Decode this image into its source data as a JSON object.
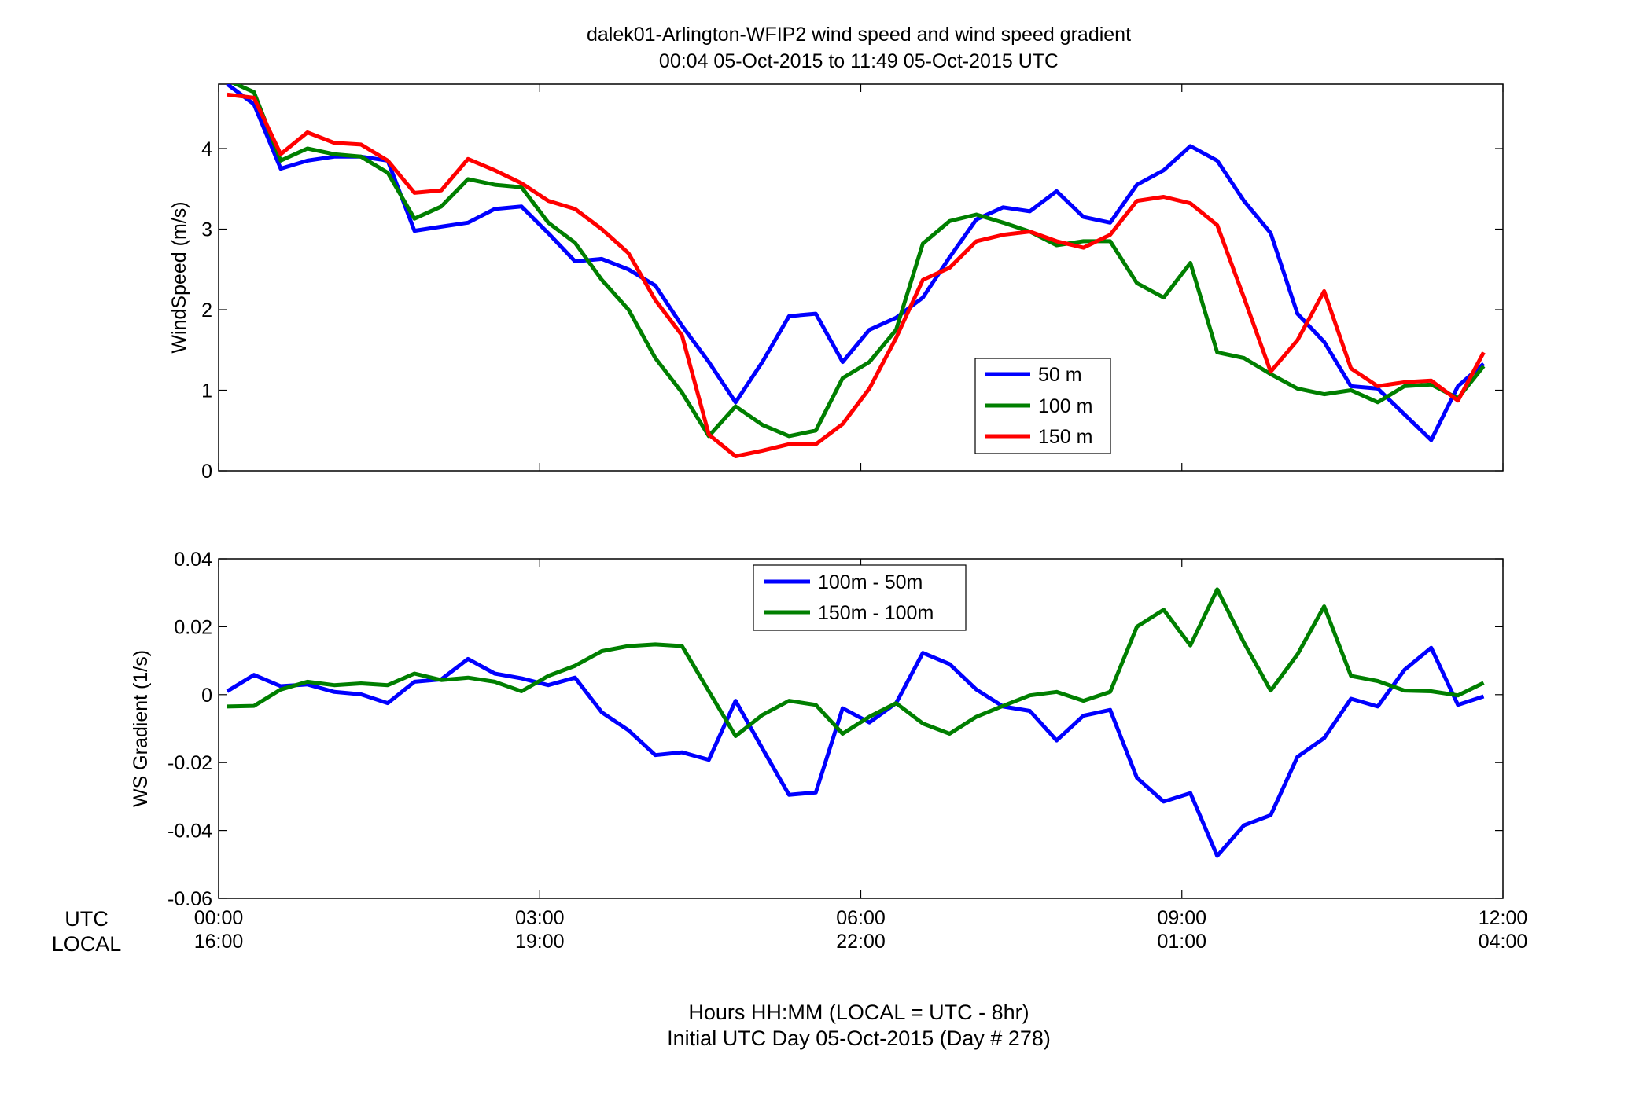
{
  "figure": {
    "title_line1": "dalek01-Arlington-WFIP2  wind speed and wind speed gradient",
    "title_line2": "00:04 05-Oct-2015 to 11:49 05-Oct-2015  UTC",
    "xlabel_line1": "Hours HH:MM  (LOCAL = UTC - 8hr)",
    "xlabel_line2": "Initial UTC Day 05-Oct-2015 (Day # 278)",
    "row_label_utc": "UTC",
    "row_label_local": "LOCAL",
    "ticks_utc": [
      "00:00",
      "03:00",
      "06:00",
      "09:00",
      "12:00"
    ],
    "ticks_local": [
      "16:00",
      "19:00",
      "22:00",
      "01:00",
      "04:00"
    ]
  },
  "chart_data": [
    {
      "type": "line",
      "ylabel": "WindSpeed (m/s)",
      "xlim": [
        0,
        12
      ],
      "ylim": [
        0,
        4.8
      ],
      "yticks": [
        0,
        1,
        2,
        3,
        4
      ],
      "ytick_labels": [
        "0",
        "1",
        "2",
        "3",
        "4"
      ],
      "xticks": [
        0,
        3,
        6,
        9,
        12
      ],
      "legend_position": "lower-right",
      "x": [
        0.08,
        0.33,
        0.58,
        0.83,
        1.08,
        1.33,
        1.58,
        1.83,
        2.08,
        2.33,
        2.58,
        2.83,
        3.08,
        3.33,
        3.58,
        3.83,
        4.08,
        4.33,
        4.58,
        4.83,
        5.08,
        5.33,
        5.58,
        5.83,
        6.08,
        6.33,
        6.58,
        6.83,
        7.08,
        7.33,
        7.58,
        7.83,
        8.08,
        8.33,
        8.58,
        8.83,
        9.08,
        9.33,
        9.58,
        9.83,
        10.08,
        10.33,
        10.58,
        10.83,
        11.08,
        11.33,
        11.58,
        11.82
      ],
      "series": [
        {
          "name": "50 m",
          "color": "#0000ff",
          "values": [
            4.8,
            4.55,
            3.75,
            3.85,
            3.9,
            3.9,
            3.85,
            2.98,
            3.03,
            3.08,
            3.25,
            3.28,
            2.95,
            2.6,
            2.63,
            2.5,
            2.3,
            1.8,
            1.35,
            0.85,
            1.35,
            1.92,
            1.95,
            1.35,
            1.75,
            1.9,
            2.15,
            2.65,
            3.12,
            3.27,
            3.22,
            3.47,
            3.15,
            3.08,
            3.55,
            3.73,
            4.03,
            3.85,
            3.35,
            2.95,
            1.95,
            1.6,
            1.05,
            1.02,
            0.7,
            0.38,
            1.05,
            1.33
          ]
        },
        {
          "name": "100 m",
          "color": "#007f00",
          "values": [
            4.85,
            4.7,
            3.85,
            4.0,
            3.93,
            3.9,
            3.7,
            3.13,
            3.28,
            3.62,
            3.55,
            3.52,
            3.08,
            2.83,
            2.37,
            2.0,
            1.4,
            0.97,
            0.43,
            0.8,
            0.57,
            0.43,
            0.5,
            1.15,
            1.35,
            1.75,
            2.82,
            3.1,
            3.18,
            3.08,
            2.97,
            2.8,
            2.85,
            2.85,
            2.33,
            2.15,
            2.58,
            1.47,
            1.4,
            1.2,
            1.02,
            0.95,
            1.0,
            0.85,
            1.05,
            1.07,
            0.9,
            1.3
          ]
        },
        {
          "name": "150 m",
          "color": "#ff0000",
          "values": [
            4.67,
            4.63,
            3.93,
            4.2,
            4.07,
            4.05,
            3.85,
            3.45,
            3.48,
            3.87,
            3.73,
            3.57,
            3.35,
            3.25,
            3.0,
            2.7,
            2.12,
            1.68,
            0.45,
            0.18,
            0.25,
            0.33,
            0.33,
            0.58,
            1.02,
            1.65,
            2.37,
            2.52,
            2.85,
            2.93,
            2.97,
            2.85,
            2.77,
            2.93,
            3.35,
            3.4,
            3.32,
            3.05,
            2.15,
            1.23,
            1.62,
            2.23,
            1.27,
            1.05,
            1.1,
            1.12,
            0.87,
            1.47
          ]
        }
      ]
    },
    {
      "type": "line",
      "ylabel": "WS Gradient (1/s)",
      "xlim": [
        0,
        12
      ],
      "ylim": [
        -0.06,
        0.04
      ],
      "yticks": [
        -0.06,
        -0.04,
        -0.02,
        0,
        0.02,
        0.04
      ],
      "ytick_labels": [
        "-0.06",
        "-0.04",
        "-0.02",
        "0",
        "0.02",
        "0.04"
      ],
      "xticks": [
        0,
        3,
        6,
        9,
        12
      ],
      "legend_position": "top-center",
      "x": [
        0.08,
        0.33,
        0.58,
        0.83,
        1.08,
        1.33,
        1.58,
        1.83,
        2.08,
        2.33,
        2.58,
        2.83,
        3.08,
        3.33,
        3.58,
        3.83,
        4.08,
        4.33,
        4.58,
        4.83,
        5.08,
        5.33,
        5.58,
        5.83,
        6.08,
        6.33,
        6.58,
        6.83,
        7.08,
        7.33,
        7.58,
        7.83,
        8.08,
        8.33,
        8.58,
        8.83,
        9.08,
        9.33,
        9.58,
        9.83,
        10.08,
        10.33,
        10.58,
        10.83,
        11.08,
        11.33,
        11.58,
        11.82
      ],
      "series": [
        {
          "name": "100m - 50m",
          "color": "#0000ff",
          "values": [
            0.001,
            0.0058,
            0.0025,
            0.003,
            0.0008,
            0.0001,
            -0.0025,
            0.0038,
            0.0045,
            0.0105,
            0.0062,
            0.0048,
            0.0028,
            0.005,
            -0.0052,
            -0.0105,
            -0.0178,
            -0.017,
            -0.0192,
            -0.0018,
            -0.0158,
            -0.0295,
            -0.0288,
            -0.004,
            -0.0082,
            -0.0025,
            0.0123,
            0.009,
            0.0015,
            -0.0035,
            -0.0048,
            -0.0135,
            -0.0062,
            -0.0045,
            -0.0245,
            -0.0315,
            -0.029,
            -0.0475,
            -0.0385,
            -0.0355,
            -0.0183,
            -0.0128,
            -0.0012,
            -0.0035,
            0.0073,
            0.0138,
            -0.003,
            -0.0005
          ]
        },
        {
          "name": "150m - 100m",
          "color": "#007f00",
          "values": [
            -0.0035,
            -0.0033,
            0.0015,
            0.0038,
            0.0028,
            0.0033,
            0.0028,
            0.0062,
            0.0043,
            0.005,
            0.0038,
            0.001,
            0.0055,
            0.0085,
            0.0128,
            0.0143,
            0.0148,
            0.0143,
            0.001,
            -0.0122,
            -0.006,
            -0.0018,
            -0.003,
            -0.0115,
            -0.0065,
            -0.0025,
            -0.0085,
            -0.0115,
            -0.0065,
            -0.0033,
            -0.0002,
            0.0008,
            -0.0018,
            0.0008,
            0.02,
            0.025,
            0.0145,
            0.031,
            0.0153,
            0.0012,
            0.0118,
            0.026,
            0.0055,
            0.004,
            0.0012,
            0.001,
            -0.0002,
            0.0035
          ]
        }
      ]
    }
  ]
}
